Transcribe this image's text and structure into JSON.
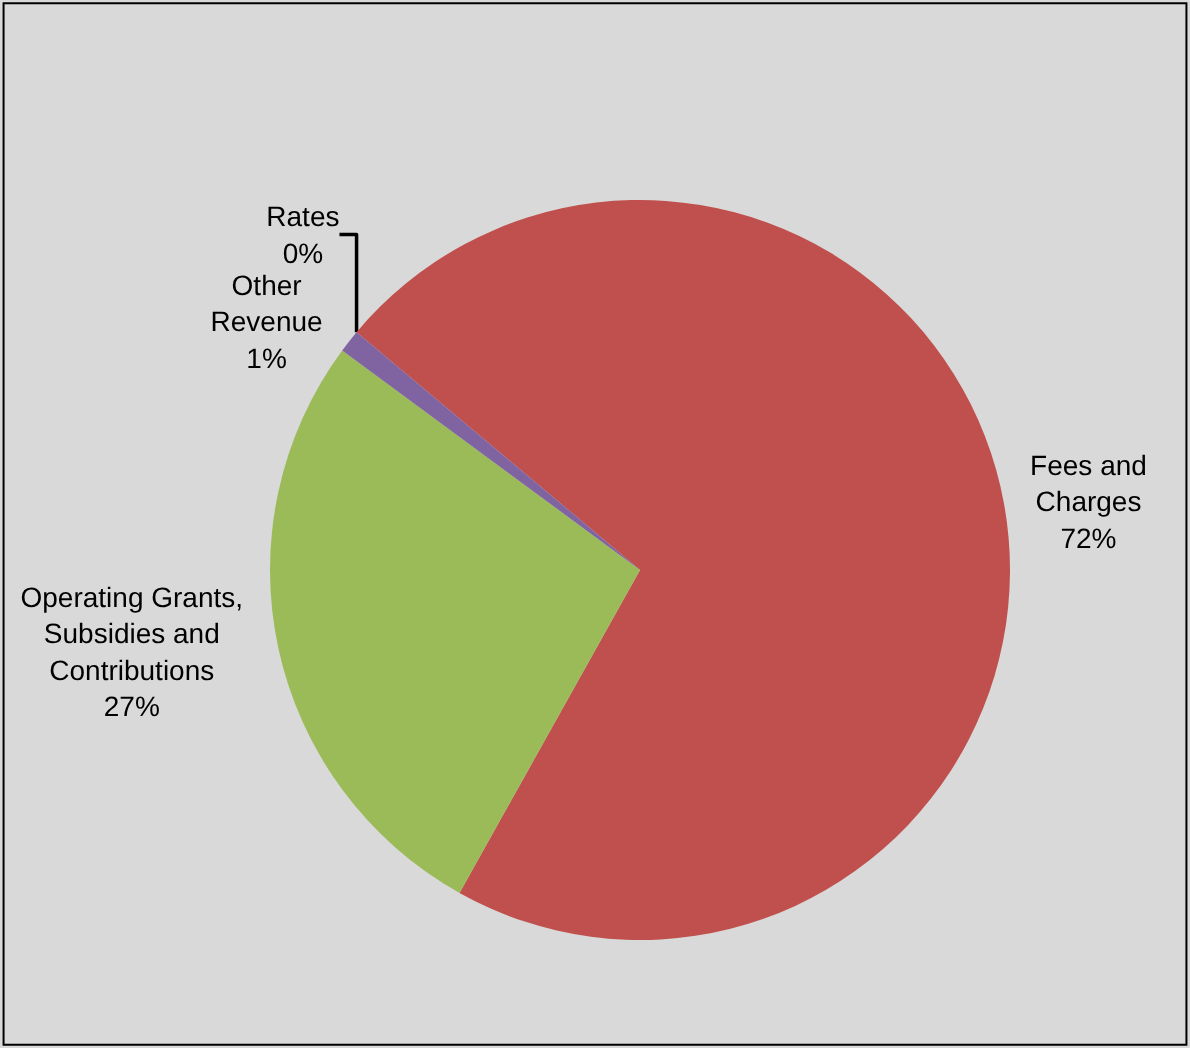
{
  "chart_data": {
    "type": "pie",
    "categories": [
      "Rates",
      "Fees and Charges",
      "Operating Grants, Subsidies and Contributions",
      "Other Revenue"
    ],
    "values": [
      0,
      72,
      27,
      1
    ],
    "colors": [
      "#4f81bd",
      "#c0504d",
      "#9bbb59",
      "#8064a2"
    ],
    "value_labels": [
      "0%",
      "72%",
      "27%",
      "1%"
    ]
  }
}
